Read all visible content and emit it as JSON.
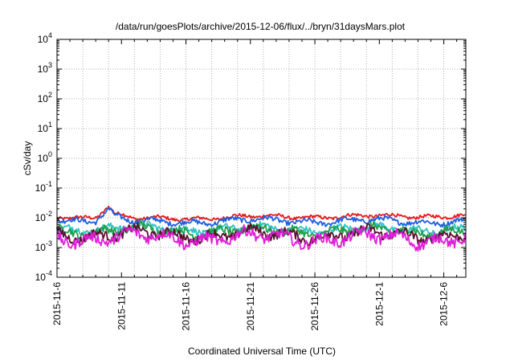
{
  "chart_data": {
    "type": "line",
    "title": "/data/run/goesPlots/archive/2015-12-06/flux/../bryn/31daysMars.plot",
    "xlabel": "Coordinated Universal Time (UTC)",
    "ylabel": "cSv/day",
    "y_scale": "log",
    "ylim": [
      0.0001,
      10000
    ],
    "xlim": [
      "2015-11-06",
      "2015-12-07T17:00"
    ],
    "x_ticks": [
      "2015-11-6",
      "2015-11-11",
      "2015-11-16",
      "2015-11-21",
      "2015-11-26",
      "2015-12-1",
      "2015-12-6"
    ],
    "y_ticks": [
      {
        "base": "10",
        "exp": "4"
      },
      {
        "base": "10",
        "exp": "3"
      },
      {
        "base": "10",
        "exp": "2"
      },
      {
        "base": "10",
        "exp": "1"
      },
      {
        "base": "10",
        "exp": "0"
      },
      {
        "base": "10",
        "exp": "-1"
      },
      {
        "base": "10",
        "exp": "-2"
      },
      {
        "base": "10",
        "exp": "-3"
      },
      {
        "base": "10",
        "exp": "-4"
      }
    ],
    "grid": true,
    "legend": "none",
    "series": [
      {
        "color": "#e41a1c",
        "level": 0.0105,
        "anchors": [
          [
            "2015-11-06",
            0.011
          ],
          [
            "2015-11-08",
            0.0105
          ],
          [
            "2015-11-09",
            0.011
          ],
          [
            "2015-11-10",
            0.025
          ],
          [
            "2015-11-10T12:00",
            0.013
          ],
          [
            "2015-11-12",
            0.009
          ],
          [
            "2015-11-20",
            0.0105
          ],
          [
            "2015-11-26",
            0.011
          ],
          [
            "2015-12-01",
            0.011
          ],
          [
            "2015-12-07T17:00",
            0.012
          ]
        ]
      },
      {
        "color": "#1f5fe0",
        "level": 0.008,
        "anchors": [
          [
            "2015-11-06",
            0.009
          ],
          [
            "2015-11-08",
            0.0085
          ],
          [
            "2015-11-09",
            0.009
          ],
          [
            "2015-11-10",
            0.019
          ],
          [
            "2015-11-10T12:00",
            0.0105
          ],
          [
            "2015-11-12",
            0.007
          ],
          [
            "2015-11-20",
            0.008
          ],
          [
            "2015-12-07T17:00",
            0.0075
          ]
        ]
      },
      {
        "color": "#2ec4c4",
        "level": 0.0042,
        "anchors": [
          [
            "2015-11-06",
            0.0045
          ],
          [
            "2015-11-20",
            0.0042
          ],
          [
            "2015-12-07T17:00",
            0.0042
          ]
        ]
      },
      {
        "color": "#1f9e4a",
        "level": 0.0036,
        "anchors": [
          [
            "2015-11-06",
            0.0038
          ],
          [
            "2015-11-20",
            0.0036
          ],
          [
            "2015-12-07T17:00",
            0.0036
          ]
        ]
      },
      {
        "color": "#5a1030",
        "level": 0.0027,
        "anchors": [
          [
            "2015-11-06",
            0.0028
          ],
          [
            "2015-11-20",
            0.0027
          ],
          [
            "2015-12-07T17:00",
            0.0027
          ]
        ]
      },
      {
        "color": "#e01fd8",
        "level": 0.0021,
        "anchors": [
          [
            "2015-11-06",
            0.0022
          ],
          [
            "2015-11-20",
            0.0021
          ],
          [
            "2015-12-07T17:00",
            0.002
          ]
        ]
      }
    ]
  }
}
